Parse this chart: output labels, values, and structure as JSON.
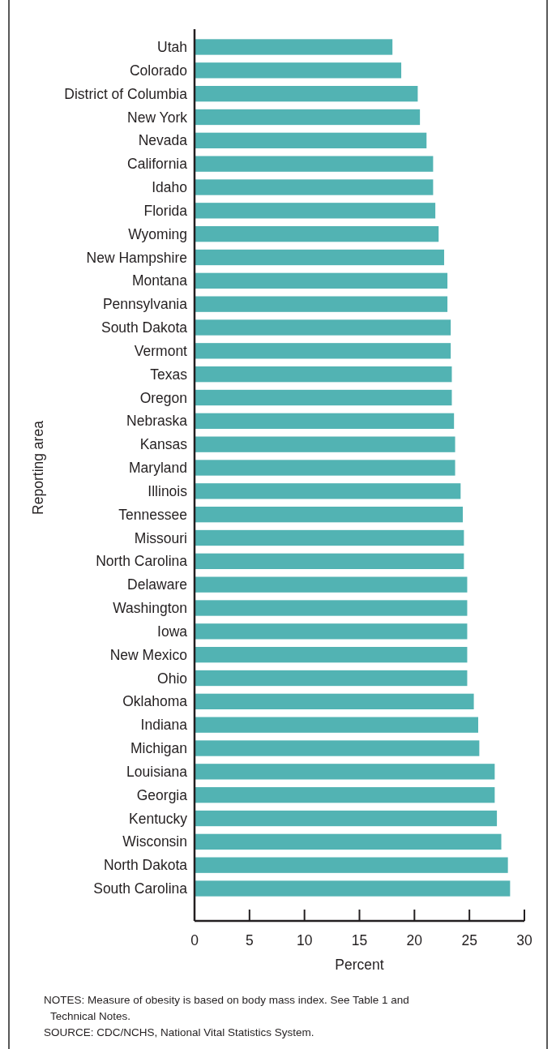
{
  "chart_data": {
    "type": "bar",
    "orientation": "horizontal",
    "xlabel": "Percent",
    "ylabel": "Reporting area",
    "categories": [
      "Utah",
      "Colorado",
      "District of Columbia",
      "New York",
      "Nevada",
      "California",
      "Idaho",
      "Florida",
      "Wyoming",
      "New Hampshire",
      "Montana",
      "Pennsylvania",
      "South Dakota",
      "Vermont",
      "Texas",
      "Oregon",
      "Nebraska",
      "Kansas",
      "Maryland",
      "Illinois",
      "Tennessee",
      "Missouri",
      "North Carolina",
      "Delaware",
      "Washington",
      "Iowa",
      "New Mexico",
      "Ohio",
      "Oklahoma",
      "Indiana",
      "Michigan",
      "Louisiana",
      "Georgia",
      "Kentucky",
      "Wisconsin",
      "North Dakota",
      "South Carolina"
    ],
    "values": [
      18.0,
      18.8,
      20.3,
      20.5,
      21.1,
      21.7,
      21.7,
      21.9,
      22.2,
      22.7,
      23.0,
      23.0,
      23.3,
      23.3,
      23.4,
      23.4,
      23.6,
      23.7,
      23.7,
      24.2,
      24.4,
      24.5,
      24.5,
      24.8,
      24.8,
      24.8,
      24.8,
      24.8,
      25.4,
      25.8,
      25.9,
      27.3,
      27.3,
      27.5,
      27.9,
      28.5,
      28.7
    ],
    "color": "#52b3b3",
    "xlim": [
      0,
      30
    ],
    "xticks": [
      0,
      5,
      10,
      15,
      20,
      25,
      30
    ],
    "annotations": [
      "NOTES: Measure of obesity is based on body mass index. See Table 1 and\nTechnical Notes.",
      "SOURCE: CDC/NCHS, National Vital Statistics System."
    ]
  }
}
